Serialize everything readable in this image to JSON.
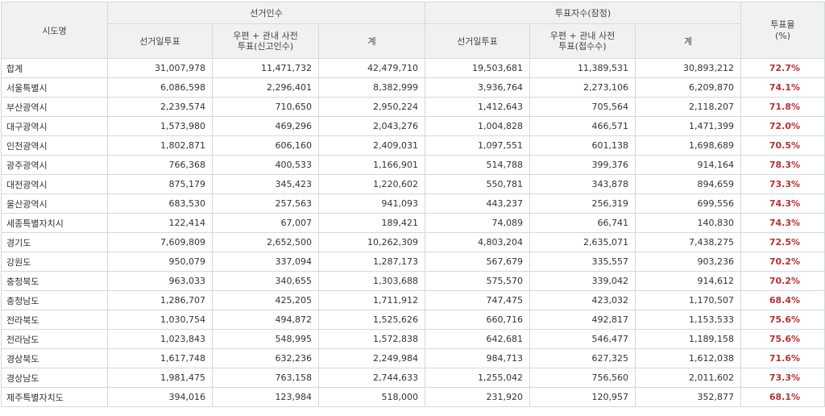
{
  "headers": {
    "region": "시도명",
    "electors": "선거인수",
    "voters": "투표자수(잠정)",
    "rate": "투표율\n(%)",
    "election_day": "선거일투표",
    "early": "우편 + 관내 사전\n투표(신고인수)",
    "early_voters": "우편 + 관내 사전\n투표(접수수)",
    "sum": "계"
  },
  "rows": [
    {
      "name": "합계",
      "e1": "31,007,978",
      "e2": "11,471,732",
      "e3": "42,479,710",
      "v1": "19,503,681",
      "v2": "11,389,531",
      "v3": "30,893,212",
      "rate": "72.7%"
    },
    {
      "name": "서울특별시",
      "e1": "6,086,598",
      "e2": "2,296,401",
      "e3": "8,382,999",
      "v1": "3,936,764",
      "v2": "2,273,106",
      "v3": "6,209,870",
      "rate": "74.1%"
    },
    {
      "name": "부산광역시",
      "e1": "2,239,574",
      "e2": "710,650",
      "e3": "2,950,224",
      "v1": "1,412,643",
      "v2": "705,564",
      "v3": "2,118,207",
      "rate": "71.8%"
    },
    {
      "name": "대구광역시",
      "e1": "1,573,980",
      "e2": "469,296",
      "e3": "2,043,276",
      "v1": "1,004,828",
      "v2": "466,571",
      "v3": "1,471,399",
      "rate": "72.0%"
    },
    {
      "name": "인천광역시",
      "e1": "1,802,871",
      "e2": "606,160",
      "e3": "2,409,031",
      "v1": "1,097,551",
      "v2": "601,138",
      "v3": "1,698,689",
      "rate": "70.5%"
    },
    {
      "name": "광주광역시",
      "e1": "766,368",
      "e2": "400,533",
      "e3": "1,166,901",
      "v1": "514,788",
      "v2": "399,376",
      "v3": "914,164",
      "rate": "78.3%"
    },
    {
      "name": "대전광역시",
      "e1": "875,179",
      "e2": "345,423",
      "e3": "1,220,602",
      "v1": "550,781",
      "v2": "343,878",
      "v3": "894,659",
      "rate": "73.3%"
    },
    {
      "name": "울산광역시",
      "e1": "683,530",
      "e2": "257,563",
      "e3": "941,093",
      "v1": "443,237",
      "v2": "256,319",
      "v3": "699,556",
      "rate": "74.3%"
    },
    {
      "name": "세종특별자치시",
      "e1": "122,414",
      "e2": "67,007",
      "e3": "189,421",
      "v1": "74,089",
      "v2": "66,741",
      "v3": "140,830",
      "rate": "74.3%"
    },
    {
      "name": "경기도",
      "e1": "7,609,809",
      "e2": "2,652,500",
      "e3": "10,262,309",
      "v1": "4,803,204",
      "v2": "2,635,071",
      "v3": "7,438,275",
      "rate": "72.5%"
    },
    {
      "name": "강원도",
      "e1": "950,079",
      "e2": "337,094",
      "e3": "1,287,173",
      "v1": "567,679",
      "v2": "335,557",
      "v3": "903,236",
      "rate": "70.2%"
    },
    {
      "name": "충청북도",
      "e1": "963,033",
      "e2": "340,655",
      "e3": "1,303,688",
      "v1": "575,570",
      "v2": "339,042",
      "v3": "914,612",
      "rate": "70.2%"
    },
    {
      "name": "충청남도",
      "e1": "1,286,707",
      "e2": "425,205",
      "e3": "1,711,912",
      "v1": "747,475",
      "v2": "423,032",
      "v3": "1,170,507",
      "rate": "68.4%"
    },
    {
      "name": "전라북도",
      "e1": "1,030,754",
      "e2": "494,872",
      "e3": "1,525,626",
      "v1": "660,716",
      "v2": "492,817",
      "v3": "1,153,533",
      "rate": "75.6%"
    },
    {
      "name": "전라남도",
      "e1": "1,023,843",
      "e2": "548,995",
      "e3": "1,572,838",
      "v1": "642,681",
      "v2": "546,477",
      "v3": "1,189,158",
      "rate": "75.6%"
    },
    {
      "name": "경상북도",
      "e1": "1,617,748",
      "e2": "632,236",
      "e3": "2,249,984",
      "v1": "984,713",
      "v2": "627,325",
      "v3": "1,612,038",
      "rate": "71.6%"
    },
    {
      "name": "경상남도",
      "e1": "1,981,475",
      "e2": "763,158",
      "e3": "2,744,633",
      "v1": "1,255,042",
      "v2": "756,560",
      "v3": "2,011,602",
      "rate": "73.3%"
    },
    {
      "name": "제주특별자치도",
      "e1": "394,016",
      "e2": "123,984",
      "e3": "518,000",
      "v1": "231,920",
      "v2": "120,957",
      "v3": "352,877",
      "rate": "68.1%"
    }
  ]
}
